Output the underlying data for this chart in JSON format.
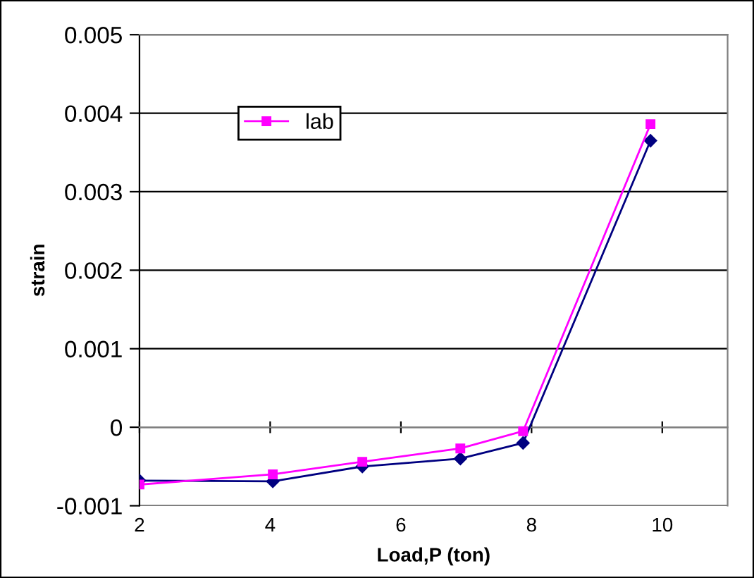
{
  "chart_data": {
    "type": "line",
    "xlabel": "Load,P (ton)",
    "ylabel": "strain",
    "xlim": [
      2,
      11
    ],
    "xticks": [
      2,
      4,
      6,
      8,
      10
    ],
    "ylim": [
      -0.001,
      0.005
    ],
    "yticks": [
      -0.001,
      0,
      0.001,
      0.002,
      0.003,
      0.004,
      0.005
    ],
    "grid": "y",
    "legend": "top left",
    "line_style": "solid",
    "series": [
      {
        "color": "#000080",
        "marker": "diamond",
        "x": [
          2,
          4.04,
          5.41,
          6.91,
          7.87,
          9.82
        ],
        "values": [
          -0.00068,
          -0.00069,
          -0.0005,
          -0.0004,
          -0.0002,
          0.00365
        ]
      },
      {
        "name": "lab",
        "color": "#ff00ff",
        "marker": "square",
        "x": [
          2,
          4.04,
          5.41,
          6.91,
          7.87,
          9.82
        ],
        "values": [
          -0.00073,
          -0.0006,
          -0.00044,
          -0.00027,
          -5e-05,
          0.00386
        ]
      }
    ]
  }
}
